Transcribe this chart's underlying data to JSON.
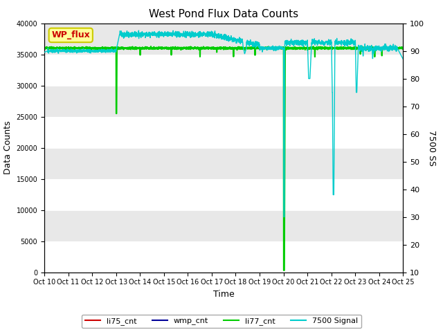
{
  "title": "West Pond Flux Data Counts",
  "xlabel": "Time",
  "ylabel_left": "Data Counts",
  "ylabel_right": "7500 SS",
  "ylim_left": [
    0,
    40000
  ],
  "ylim_right": [
    10,
    100
  ],
  "fig_bg_color": "#ffffff",
  "band_colors": [
    "#ffffff",
    "#e8e8e8"
  ],
  "legend_entries": [
    "li75_cnt",
    "wmp_cnt",
    "li77_cnt",
    "7500 Signal"
  ],
  "legend_colors": [
    "#cc0000",
    "#000099",
    "#00cc00",
    "#00cccc"
  ],
  "annotation_text": "WP_flux",
  "annotation_bg": "#ffff99",
  "annotation_border": "#cccc00",
  "annotation_text_color": "#cc0000",
  "x_tick_labels": [
    "Oct 10",
    "Oct 11",
    "Oct 12",
    "Oct 13",
    "Oct 14",
    "Oct 15",
    "Oct 16",
    "Oct 17",
    "Oct 18",
    "Oct 19",
    "Oct 20",
    "Oct 21",
    "Oct 22",
    "Oct 23",
    "Oct 24",
    "Oct 25"
  ],
  "x_tick_positions": [
    0,
    1,
    2,
    3,
    4,
    5,
    6,
    7,
    8,
    9,
    10,
    11,
    12,
    13,
    14,
    15
  ],
  "num_points": 3000,
  "base_count": 36000,
  "li77_oct13_dip": 25500,
  "li77_oct20_dip": 300
}
